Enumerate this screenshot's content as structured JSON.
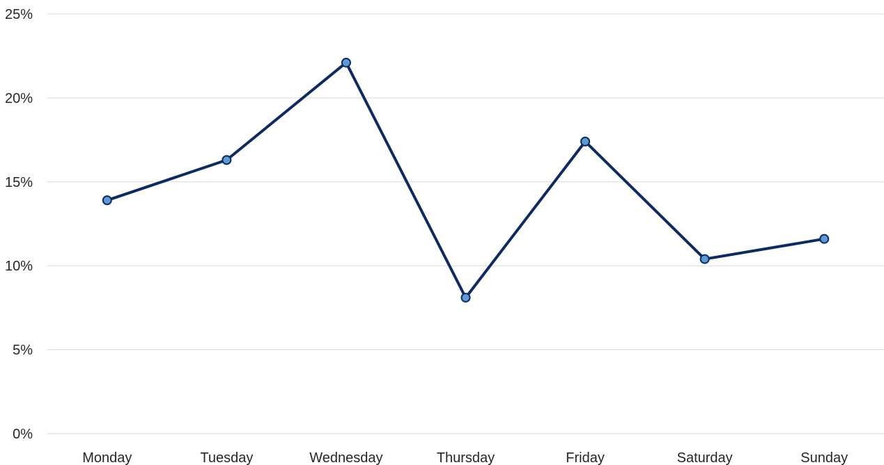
{
  "chart_data": {
    "type": "line",
    "title": "",
    "xlabel": "",
    "ylabel": "",
    "categories": [
      "Monday",
      "Tuesday",
      "Wednesday",
      "Thursday",
      "Friday",
      "Saturday",
      "Sunday"
    ],
    "series": [
      {
        "values": [
          13.9,
          16.3,
          22.1,
          8.1,
          17.4,
          10.4,
          11.6
        ]
      }
    ],
    "ylim": [
      0,
      25
    ],
    "yticks": [
      0,
      5,
      10,
      15,
      20,
      25
    ],
    "ytick_labels": [
      "0%",
      "5%",
      "10%",
      "15%",
      "20%",
      "25%"
    ],
    "grid": true,
    "legend": "none",
    "colors": {
      "line": "#0e2a63",
      "marker_fill": "#5b9bd5",
      "marker_stroke": "#0e2a63",
      "grid": "#d9d9d9"
    }
  }
}
